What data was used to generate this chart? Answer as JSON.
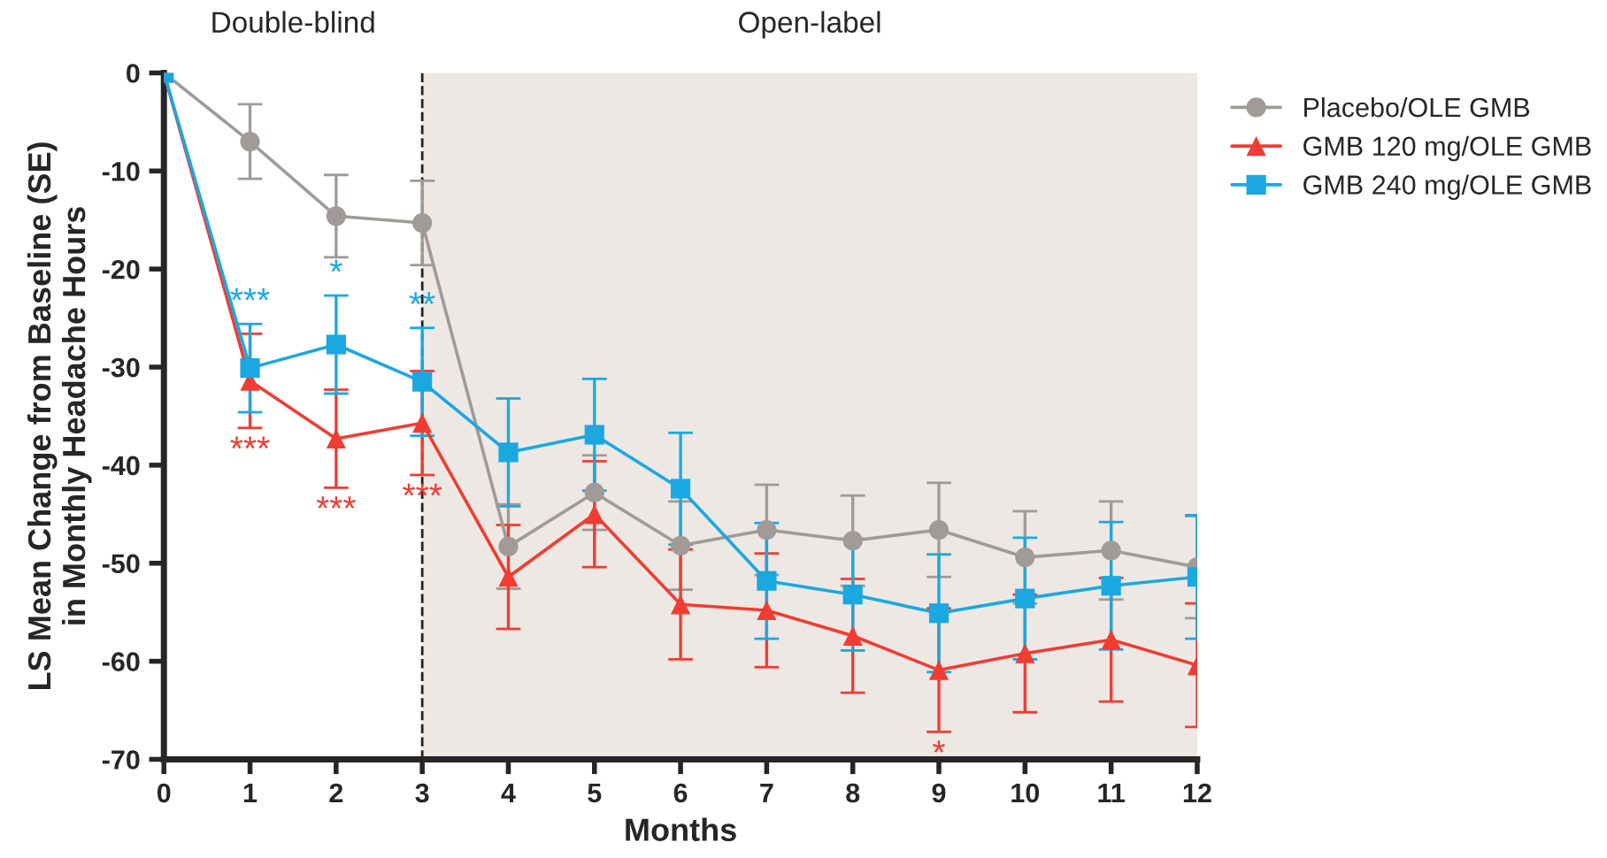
{
  "chart_data": {
    "type": "line",
    "xlabel": "Months",
    "ylabel": "LS Mean Change from Baseline (SE)\nin Monthly Headache Hours",
    "x": [
      0,
      1,
      2,
      3,
      4,
      5,
      6,
      7,
      8,
      9,
      10,
      11,
      12
    ],
    "series": [
      {
        "name": "Placebo/OLE GMB",
        "color": "#a09a98",
        "marker": "circle",
        "values": [
          0,
          -7,
          -14.6,
          -15.3,
          -48.3,
          -42.8,
          -48.2,
          -46.6,
          -47.7,
          -46.6,
          -49.4,
          -48.7,
          -50.4
        ],
        "errors": [
          null,
          3.8,
          4.2,
          4.3,
          4.3,
          3.8,
          4.5,
          4.6,
          4.6,
          4.8,
          4.7,
          5,
          5.2
        ]
      },
      {
        "name": "GMB 120 mg/OLE GMB",
        "color": "#f03c32",
        "marker": "triangle",
        "values": [
          0,
          -31.4,
          -37.3,
          -35.7,
          -51.4,
          -45,
          -54.2,
          -54.8,
          -57.4,
          -60.9,
          -59.2,
          -57.8,
          -60.4
        ],
        "errors": [
          null,
          4.8,
          5,
          5.3,
          5.3,
          5.4,
          5.6,
          5.8,
          5.8,
          6.3,
          6,
          6.3,
          6.3
        ]
      },
      {
        "name": "GMB 240 mg/OLE GMB",
        "color": "#1ba8e0",
        "marker": "square",
        "values": [
          0,
          -30.1,
          -27.7,
          -31.5,
          -38.7,
          -36.9,
          -42.4,
          -51.8,
          -53.2,
          -55.1,
          -53.6,
          -52.3,
          -51.4
        ],
        "errors": [
          null,
          4.5,
          5,
          5.5,
          5.5,
          5.7,
          5.7,
          5.9,
          5.7,
          6,
          6.2,
          6.5,
          6.3
        ]
      }
    ],
    "xlim": [
      0,
      12
    ],
    "xticks": [
      0,
      1,
      2,
      3,
      4,
      5,
      6,
      7,
      8,
      9,
      10,
      11,
      12
    ],
    "ylim": [
      -70,
      0
    ],
    "yticks": [
      -70,
      -60,
      -50,
      -40,
      -30,
      -20,
      -10,
      0
    ],
    "ref_lines": [
      {
        "axis": "x",
        "value": 3,
        "color": "#222222",
        "line_style": "dashed"
      }
    ],
    "bands": [
      {
        "axis": "x",
        "from": 3,
        "to": 12,
        "color": "#ede8e4"
      }
    ],
    "annotations": [
      "Double-blind",
      "Open-label",
      {
        "text": "***",
        "x": 1,
        "y": -25.6
      },
      {
        "text": "*",
        "x": 2,
        "y": -22.7
      },
      {
        "text": "**",
        "x": 3,
        "y": -26
      },
      {
        "text": "***",
        "x": 1,
        "y": -36.2
      },
      {
        "text": "***",
        "x": 2,
        "y": -42.3
      },
      {
        "text": "***",
        "x": 3,
        "y": -41
      },
      {
        "text": "*",
        "x": 9,
        "y": -67.2
      }
    ],
    "legend": "right",
    "grid": false,
    "line_style": "solid"
  }
}
